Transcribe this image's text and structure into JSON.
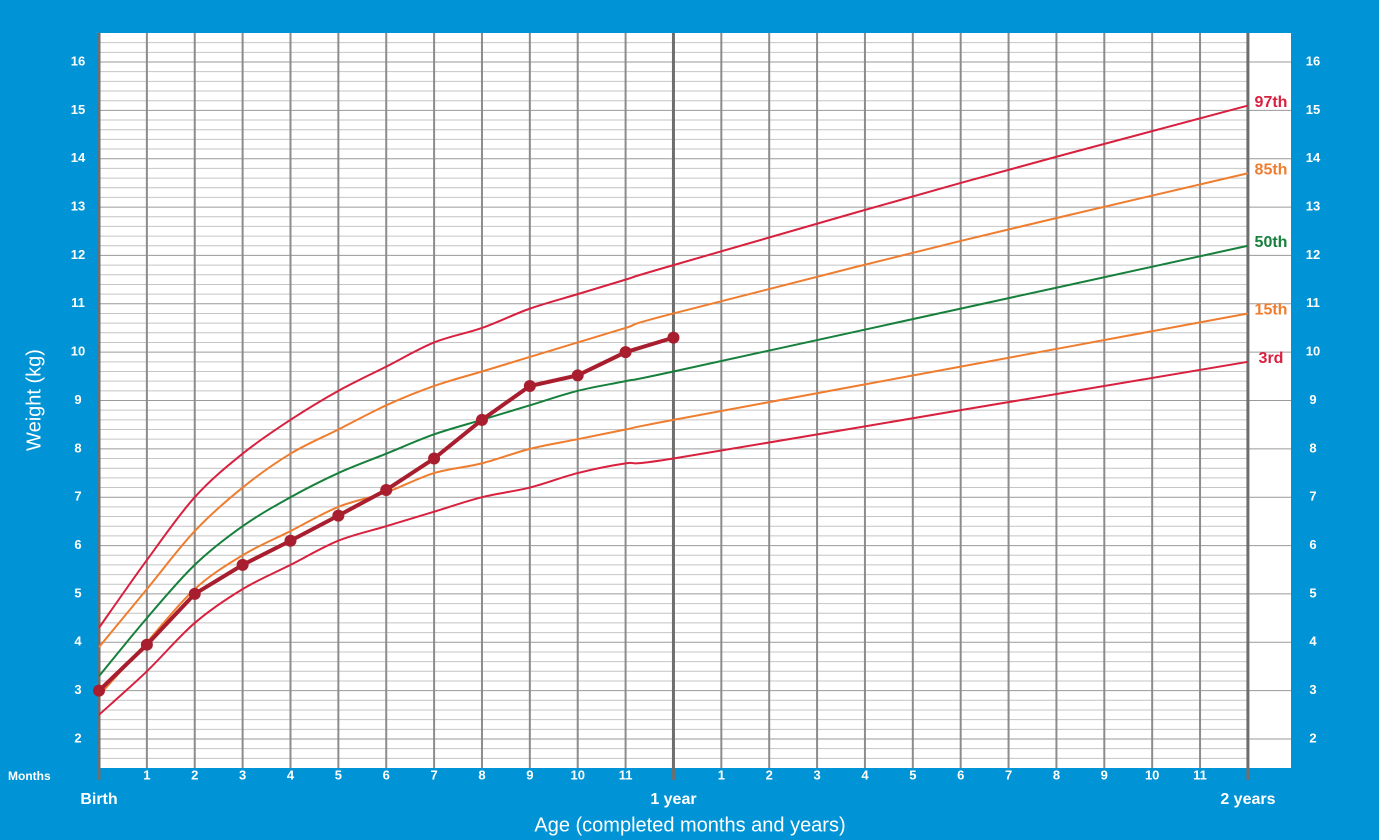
{
  "chart_data": {
    "type": "line",
    "ylabel": "Weight (kg)",
    "xlabel": "Age (completed months and years)",
    "xtick_row_label": "Months",
    "xlim": [
      0,
      24.9
    ],
    "ylim": [
      1.4,
      16.6
    ],
    "yticks": [
      2,
      3,
      4,
      5,
      6,
      7,
      8,
      9,
      10,
      11,
      12,
      13,
      14,
      15,
      16
    ],
    "xticks": [
      1,
      2,
      3,
      4,
      5,
      6,
      7,
      8,
      9,
      10,
      11,
      {
        "value": 13,
        "label": "1"
      },
      {
        "value": 14,
        "label": "2"
      },
      {
        "value": 15,
        "label": "3"
      },
      {
        "value": 16,
        "label": "4"
      },
      {
        "value": 17,
        "label": "5"
      },
      {
        "value": 18,
        "label": "6"
      },
      {
        "value": 19,
        "label": "7"
      },
      {
        "value": 20,
        "label": "8"
      },
      {
        "value": 21,
        "label": "9"
      },
      {
        "value": 22,
        "label": "10"
      },
      {
        "value": 23,
        "label": "11"
      }
    ],
    "year_ticks": [
      {
        "value": 0,
        "label": "Birth"
      },
      {
        "value": 12,
        "label": "1 year"
      },
      {
        "value": 24,
        "label": "2 years"
      }
    ],
    "grid": true,
    "series": [
      {
        "name": "97th",
        "color": "#d8203f",
        "x": [
          0,
          1,
          2,
          3,
          4,
          5,
          6,
          7,
          8,
          9,
          10,
          11,
          12,
          18,
          24
        ],
        "values": [
          4.3,
          5.7,
          7.0,
          7.9,
          8.6,
          9.2,
          9.7,
          10.2,
          10.5,
          10.9,
          11.2,
          11.5,
          11.8,
          13.5,
          15.1
        ]
      },
      {
        "name": "85th",
        "color": "#ef7d2f",
        "x": [
          0,
          1,
          2,
          3,
          4,
          5,
          6,
          7,
          8,
          9,
          10,
          11,
          12,
          18,
          24
        ],
        "values": [
          3.9,
          5.1,
          6.3,
          7.2,
          7.9,
          8.4,
          8.9,
          9.3,
          9.6,
          9.9,
          10.2,
          10.5,
          10.8,
          12.3,
          13.7
        ]
      },
      {
        "name": "50th",
        "color": "#16803c",
        "x": [
          0,
          1,
          2,
          3,
          4,
          5,
          6,
          7,
          8,
          9,
          10,
          11,
          12,
          18,
          24
        ],
        "values": [
          3.3,
          4.5,
          5.6,
          6.4,
          7.0,
          7.5,
          7.9,
          8.3,
          8.6,
          8.9,
          9.2,
          9.4,
          9.6,
          10.9,
          12.2
        ]
      },
      {
        "name": "15th",
        "color": "#ef7d2f",
        "x": [
          0,
          1,
          2,
          3,
          4,
          5,
          6,
          7,
          8,
          9,
          10,
          11,
          12,
          18,
          24
        ],
        "values": [
          2.9,
          4.0,
          5.1,
          5.8,
          6.3,
          6.8,
          7.1,
          7.5,
          7.7,
          8.0,
          8.2,
          8.4,
          8.6,
          9.7,
          10.8
        ]
      },
      {
        "name": "3rd",
        "color": "#d8203f",
        "x": [
          0,
          1,
          2,
          3,
          4,
          5,
          6,
          7,
          8,
          9,
          10,
          11,
          12,
          18,
          24
        ],
        "values": [
          2.5,
          3.4,
          4.4,
          5.1,
          5.6,
          6.1,
          6.4,
          6.7,
          7.0,
          7.2,
          7.5,
          7.7,
          7.8,
          8.8,
          9.8
        ]
      }
    ],
    "child": {
      "color": "#a81e2e",
      "x": [
        0,
        1,
        2,
        3,
        4,
        5,
        6,
        7,
        8,
        9,
        10,
        11,
        12
      ],
      "values": [
        3.0,
        3.95,
        5.0,
        5.6,
        6.1,
        6.62,
        7.15,
        7.8,
        8.6,
        9.3,
        9.52,
        10.0,
        10.3
      ]
    }
  }
}
